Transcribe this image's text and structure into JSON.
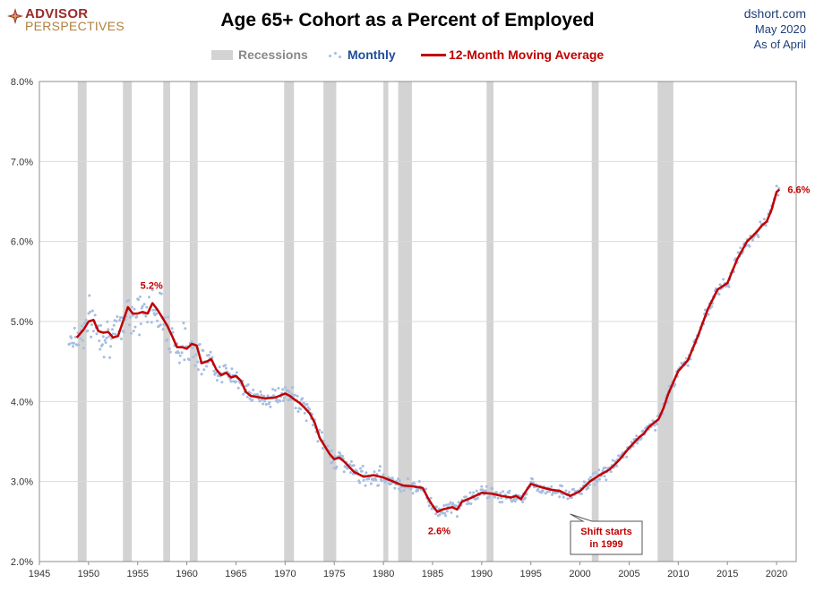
{
  "header": {
    "logo_line1": "ADVISOR",
    "logo_line2": "PERSPECTIVES",
    "title": "Age 65+ Cohort as a Percent of Employed",
    "source_site": "dshort.com",
    "source_date": "May 2020",
    "source_asof": "As of April"
  },
  "legend": {
    "recessions": "Recessions",
    "monthly": "Monthly",
    "moving_average": "12-Month Moving Average"
  },
  "colors": {
    "recession": "#d3d3d3",
    "monthly": "#a7bde0",
    "moving_average": "#c00000",
    "annotation": "#c00000",
    "grid": "#d9d9d9"
  },
  "chart_data": {
    "type": "line",
    "title": "Age 65+ Cohort as a Percent of Employed",
    "xlim": [
      1945,
      2022
    ],
    "ylim": [
      2.0,
      8.0
    ],
    "x_ticks": [
      1945,
      1950,
      1955,
      1960,
      1965,
      1970,
      1975,
      1980,
      1985,
      1990,
      1995,
      2000,
      2005,
      2010,
      2015,
      2020
    ],
    "x_tick_labels": [
      "1945",
      "1950",
      "1955",
      "1960",
      "1965",
      "1970",
      "1975",
      "1980",
      "1985",
      "1990",
      "1995",
      "2000",
      "2005",
      "2010",
      "2015",
      "2020"
    ],
    "y_ticks": [
      2,
      3,
      4,
      5,
      6,
      7,
      8
    ],
    "y_tick_labels": [
      "2.0%",
      "3.0%",
      "4.0%",
      "5.0%",
      "6.0%",
      "7.0%",
      "8.0%"
    ],
    "grid": true,
    "legend_position": "top-center",
    "recessions": [
      [
        1948.9,
        1949.8
      ],
      [
        1953.5,
        1954.4
      ],
      [
        1957.6,
        1958.3
      ],
      [
        1960.3,
        1961.1
      ],
      [
        1969.9,
        1970.9
      ],
      [
        1973.9,
        1975.2
      ],
      [
        1980.0,
        1980.5
      ],
      [
        1981.5,
        1982.9
      ],
      [
        1990.5,
        1991.2
      ],
      [
        2001.2,
        2001.9
      ],
      [
        2007.9,
        2009.5
      ]
    ],
    "series": [
      {
        "name": "12-Month Moving Average",
        "x": [
          1948.8,
          1949.5,
          1950.0,
          1950.5,
          1951.0,
          1951.5,
          1952.0,
          1952.5,
          1953.0,
          1953.5,
          1954.0,
          1954.5,
          1955.0,
          1955.5,
          1956.0,
          1956.5,
          1957.0,
          1957.5,
          1958.0,
          1958.5,
          1959.0,
          1959.5,
          1960.0,
          1960.5,
          1961.0,
          1961.5,
          1962.0,
          1962.5,
          1963.0,
          1963.5,
          1964.0,
          1964.5,
          1965.0,
          1965.5,
          1966.0,
          1966.5,
          1967.0,
          1968.0,
          1969.0,
          1970.0,
          1970.5,
          1971.0,
          1971.5,
          1972.0,
          1972.5,
          1973.0,
          1973.5,
          1974.0,
          1974.5,
          1975.0,
          1975.5,
          1976.0,
          1977.0,
          1978.0,
          1979.0,
          1980.0,
          1981.0,
          1982.0,
          1983.0,
          1984.0,
          1984.5,
          1985.0,
          1985.5,
          1986.0,
          1987.0,
          1987.5,
          1988.0,
          1989.0,
          1990.0,
          1991.0,
          1992.0,
          1993.0,
          1993.5,
          1994.0,
          1994.5,
          1995.0,
          1996.0,
          1997.0,
          1998.0,
          1998.5,
          1999.0,
          1999.5,
          2000.0,
          2001.0,
          2002.0,
          2003.0,
          2004.0,
          2005.0,
          2006.0,
          2006.5,
          2007.0,
          2008.0,
          2008.5,
          2009.0,
          2010.0,
          2011.0,
          2012.0,
          2013.0,
          2014.0,
          2015.0,
          2016.0,
          2017.0,
          2018.0,
          2018.5,
          2019.0,
          2019.5,
          2020.0,
          2020.3
        ],
        "values": [
          4.8,
          4.9,
          5.0,
          5.02,
          4.88,
          4.86,
          4.87,
          4.8,
          4.82,
          5.0,
          5.18,
          5.1,
          5.1,
          5.12,
          5.1,
          5.23,
          5.15,
          5.05,
          4.95,
          4.82,
          4.68,
          4.68,
          4.66,
          4.72,
          4.7,
          4.48,
          4.5,
          4.53,
          4.4,
          4.33,
          4.36,
          4.3,
          4.32,
          4.26,
          4.12,
          4.07,
          4.06,
          4.04,
          4.05,
          4.1,
          4.07,
          4.02,
          3.98,
          3.92,
          3.85,
          3.74,
          3.55,
          3.45,
          3.35,
          3.28,
          3.3,
          3.25,
          3.12,
          3.06,
          3.08,
          3.05,
          3.0,
          2.95,
          2.94,
          2.92,
          2.8,
          2.7,
          2.62,
          2.65,
          2.68,
          2.65,
          2.75,
          2.8,
          2.86,
          2.85,
          2.82,
          2.8,
          2.82,
          2.78,
          2.88,
          2.97,
          2.93,
          2.9,
          2.88,
          2.85,
          2.82,
          2.85,
          2.88,
          3.0,
          3.08,
          3.15,
          3.27,
          3.42,
          3.55,
          3.6,
          3.68,
          3.78,
          3.92,
          4.1,
          4.38,
          4.52,
          4.82,
          5.15,
          5.4,
          5.48,
          5.78,
          6.0,
          6.12,
          6.2,
          6.25,
          6.4,
          6.62,
          6.65
        ]
      },
      {
        "name": "Monthly",
        "note_values": "scatter around the moving average, same x range 1948-2020"
      }
    ],
    "annotations": [
      {
        "text": "5.2%",
        "x": 1956.5,
        "y": 5.23
      },
      {
        "text": "2.6%",
        "x": 1985.5,
        "y": 2.62
      },
      {
        "text": "6.6%",
        "x": 2020.3,
        "y": 6.65
      },
      {
        "text": "Shift starts\nin 1999",
        "x": 1999.0,
        "y": 2.75
      }
    ]
  }
}
